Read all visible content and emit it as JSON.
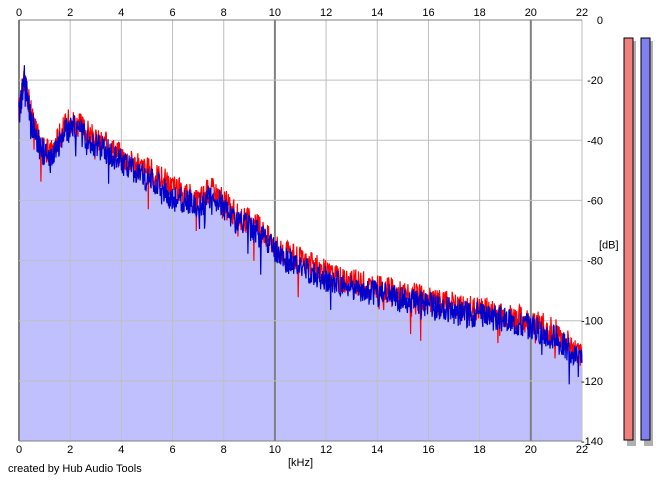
{
  "credit": "created by Hub Audio Tools",
  "colors": {
    "background": "#ffffff",
    "plot_background": "#ffffff",
    "grid": "#bfbfbf",
    "grid_major": "#808080",
    "fill": "#c0c0ff",
    "left_channel": "#ff0000",
    "right_channel": "#0000cc",
    "meter_left": "#f08080",
    "meter_right": "#8080f0",
    "meter_shadow": "#b0b0b0"
  },
  "chart_data": {
    "type": "line",
    "xlabel": "[kHz]",
    "ylabel": "[dB]",
    "xlim": [
      0,
      22
    ],
    "ylim": [
      -140,
      0
    ],
    "x_ticks": [
      "0",
      "2",
      "4",
      "6",
      "8",
      "10",
      "12",
      "14",
      "16",
      "18",
      "20",
      "22"
    ],
    "y_ticks": [
      "0",
      "-20",
      "-40",
      "-60",
      "-80",
      "-100",
      "-120",
      "-140"
    ],
    "grid": true,
    "series": [
      {
        "channel": "left",
        "color": "#ff0000",
        "x": [
          0,
          0.2,
          0.5,
          0.8,
          1.2,
          1.6,
          2.0,
          2.5,
          3.0,
          3.5,
          4.0,
          4.5,
          5.0,
          5.5,
          6.0,
          6.5,
          7.0,
          7.5,
          8.0,
          8.5,
          9.0,
          9.5,
          10.0,
          10.5,
          11.0,
          11.5,
          12.0,
          12.5,
          13.0,
          13.5,
          14.0,
          14.5,
          15.0,
          15.5,
          16.0,
          16.5,
          17.0,
          17.5,
          18.0,
          18.5,
          19.0,
          19.5,
          20.0,
          20.5,
          21.0,
          21.5,
          22.0
        ],
        "values": [
          -30,
          -20,
          -32,
          -40,
          -45,
          -38,
          -33,
          -36,
          -40,
          -42,
          -45,
          -48,
          -50,
          -52,
          -56,
          -58,
          -60,
          -56,
          -60,
          -65,
          -67,
          -70,
          -75,
          -78,
          -80,
          -82,
          -84,
          -86,
          -87,
          -88,
          -89,
          -90,
          -91,
          -92,
          -93,
          -94,
          -95,
          -96,
          -96,
          -97,
          -98,
          -99,
          -100,
          -102,
          -104,
          -108,
          -112
        ]
      },
      {
        "channel": "right",
        "color": "#0000cc",
        "x": [
          0,
          0.2,
          0.5,
          0.8,
          1.2,
          1.6,
          2.0,
          2.5,
          3.0,
          3.5,
          4.0,
          4.5,
          5.0,
          5.5,
          6.0,
          6.5,
          7.0,
          7.5,
          8.0,
          8.5,
          9.0,
          9.5,
          10.0,
          10.5,
          11.0,
          11.5,
          12.0,
          12.5,
          13.0,
          13.5,
          14.0,
          14.5,
          15.0,
          15.5,
          16.0,
          16.5,
          17.0,
          17.5,
          18.0,
          18.5,
          19.0,
          19.5,
          20.0,
          20.5,
          21.0,
          21.5,
          22.0
        ],
        "values": [
          -32,
          -19,
          -34,
          -42,
          -47,
          -40,
          -35,
          -38,
          -42,
          -44,
          -47,
          -50,
          -53,
          -55,
          -60,
          -60,
          -62,
          -58,
          -62,
          -67,
          -69,
          -72,
          -77,
          -80,
          -82,
          -84,
          -86,
          -88,
          -89,
          -90,
          -91,
          -92,
          -93,
          -94,
          -95,
          -96,
          -97,
          -98,
          -98,
          -99,
          -100,
          -101,
          -102,
          -104,
          -106,
          -110,
          -114
        ]
      }
    ],
    "meters": [
      {
        "channel": "left",
        "color": "#f08080"
      },
      {
        "channel": "right",
        "color": "#8080f0"
      }
    ]
  }
}
